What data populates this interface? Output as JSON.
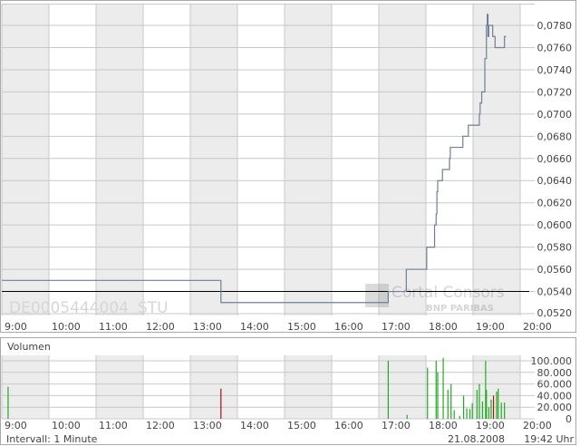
{
  "chart_data": [
    {
      "type": "line",
      "step": true,
      "instrument_label": "DE0005444004",
      "exchange_label": "STU",
      "watermark": "Cortal Consors BNP PARIBAS",
      "x_ticks": [
        "9:00",
        "10:00",
        "11:00",
        "12:00",
        "13:00",
        "14:00",
        "15:00",
        "16:00",
        "17:00",
        "18:00",
        "19:00",
        "20:00"
      ],
      "y_ticks": [
        "0,0520",
        "0,0540",
        "0,0560",
        "0,0580",
        "0,0600",
        "0,0620",
        "0,0640",
        "0,0660",
        "0,0680",
        "0,0700",
        "0,0720",
        "0,0740",
        "0,0760",
        "0,0780"
      ],
      "ylim": [
        0.052,
        0.079
      ],
      "xlim": [
        "9:00",
        "20:00"
      ],
      "reference_line": 0.054,
      "line_color": "#6f7f99",
      "points": [
        [
          "9:00",
          0.055
        ],
        [
          "13:39",
          0.053
        ],
        [
          "17:12",
          0.054
        ],
        [
          "17:35",
          0.056
        ],
        [
          "18:01",
          0.058
        ],
        [
          "18:11",
          0.06
        ],
        [
          "18:13",
          0.061
        ],
        [
          "18:14",
          0.063
        ],
        [
          "18:15",
          0.064
        ],
        [
          "18:21",
          0.065
        ],
        [
          "18:30",
          0.066
        ],
        [
          "18:31",
          0.067
        ],
        [
          "18:47",
          0.068
        ],
        [
          "18:54",
          0.069
        ],
        [
          "19:08",
          0.07
        ],
        [
          "19:09",
          0.071
        ],
        [
          "19:11",
          0.072
        ],
        [
          "19:15",
          0.075
        ],
        [
          "19:17",
          0.078
        ],
        [
          "19:18",
          0.079
        ],
        [
          "19:19",
          0.077
        ],
        [
          "19:20",
          0.078
        ],
        [
          "19:25",
          0.077
        ],
        [
          "19:28",
          0.076
        ],
        [
          "19:40",
          0.077
        ],
        [
          "19:42",
          0.077
        ]
      ]
    },
    {
      "type": "bar",
      "title": "Volumen",
      "x_ticks": [
        "9:00",
        "10:00",
        "11:00",
        "12:00",
        "13:00",
        "14:00",
        "15:00",
        "16:00",
        "17:00",
        "18:00",
        "19:00",
        "20:00"
      ],
      "y_ticks": [
        "0",
        "20.000",
        "40.000",
        "60.000",
        "80.000",
        "100.000"
      ],
      "ylim": [
        0,
        110000
      ],
      "up_color": "#22aa22",
      "down_color": "#aa1111",
      "bars": [
        [
          "9:08",
          55000,
          "up"
        ],
        [
          "13:39",
          52000,
          "down"
        ],
        [
          "17:12",
          100000,
          "up"
        ],
        [
          "17:36",
          7000,
          "up"
        ],
        [
          "18:02",
          88000,
          "up"
        ],
        [
          "18:13",
          100000,
          "up"
        ],
        [
          "18:15",
          80000,
          "up"
        ],
        [
          "18:22",
          105000,
          "up"
        ],
        [
          "18:28",
          50000,
          "up"
        ],
        [
          "18:32",
          60000,
          "up"
        ],
        [
          "18:36",
          15000,
          "up"
        ],
        [
          "18:43",
          5000,
          "up"
        ],
        [
          "18:48",
          40000,
          "up"
        ],
        [
          "18:52",
          18000,
          "up"
        ],
        [
          "18:56",
          17000,
          "up"
        ],
        [
          "18:59",
          27000,
          "up"
        ],
        [
          "19:05",
          50000,
          "up"
        ],
        [
          "19:08",
          60000,
          "up"
        ],
        [
          "19:12",
          30000,
          "up"
        ],
        [
          "19:16",
          100000,
          "up"
        ],
        [
          "19:17",
          50000,
          "up"
        ],
        [
          "19:20",
          20000,
          "up"
        ],
        [
          "19:23",
          33000,
          "up"
        ],
        [
          "19:26",
          40000,
          "down"
        ],
        [
          "19:30",
          47000,
          "up"
        ],
        [
          "19:32",
          52000,
          "up"
        ],
        [
          "19:36",
          28000,
          "up"
        ],
        [
          "19:40",
          28000,
          "up"
        ]
      ]
    }
  ],
  "footer": {
    "interval": "Intervall: 1 Minute",
    "date": "21.08.2008",
    "time": "19:42 Uhr"
  }
}
